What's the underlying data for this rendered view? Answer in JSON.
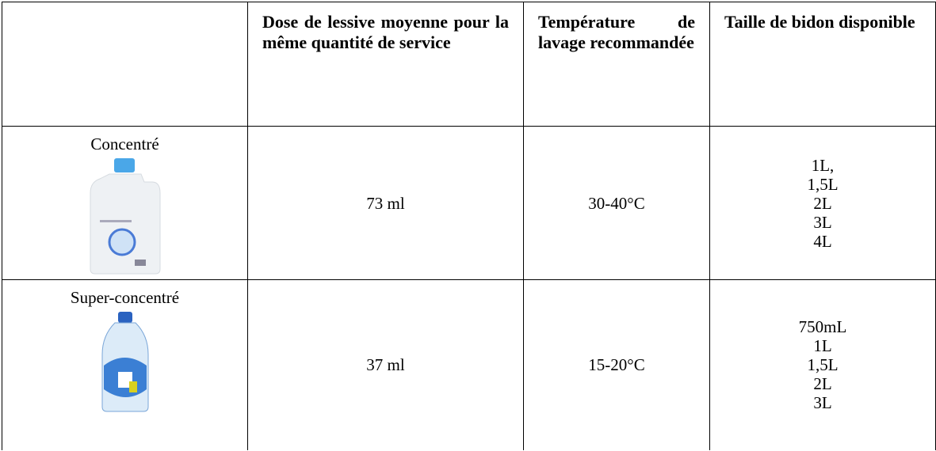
{
  "table": {
    "header": [
      "Dose de lessive moyenne pour la même quantité de service",
      "Température de lavage recommandée",
      "Taille de bidon disponible"
    ],
    "rows": [
      {
        "label": "Concentré",
        "dose": "73 ml",
        "temperature": "30-40°C",
        "sizes": [
          "1L,",
          "1,5L",
          "2L",
          "3L",
          "4L"
        ]
      },
      {
        "label": "Super-concentré",
        "dose": "37 ml",
        "temperature": "15-20°C",
        "sizes": [
          "750mL",
          "1L",
          "1,5L",
          "2L",
          "3L"
        ]
      }
    ]
  }
}
